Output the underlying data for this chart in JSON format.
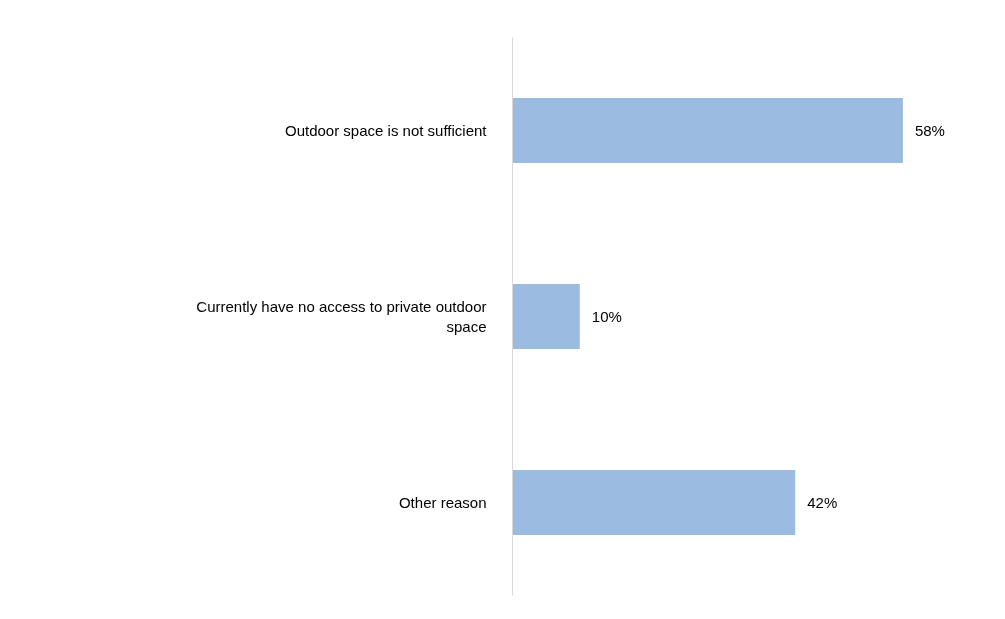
{
  "chart_data": {
    "type": "bar",
    "orientation": "horizontal",
    "categories": [
      "Outdoor space is not sufficient",
      "Currently have no access to private outdoor space",
      "Other reason"
    ],
    "values": [
      58,
      10,
      42
    ],
    "color": "#9bbbe0",
    "data_labels": true,
    "value_labels": [
      "58%",
      "10%",
      "42%"
    ],
    "grid": false
  }
}
